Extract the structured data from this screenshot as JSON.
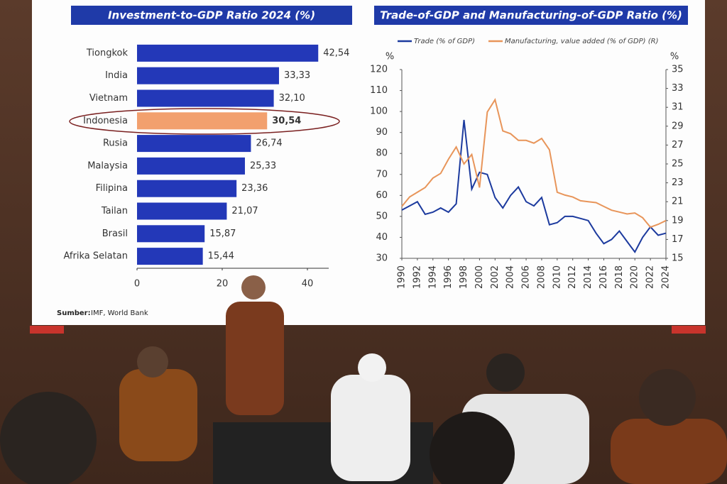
{
  "chart_data": [
    {
      "type": "bar",
      "orientation": "horizontal",
      "title": "Investment-to-GDP Ratio 2024 (%)",
      "categories": [
        "Tiongkok",
        "India",
        "Vietnam",
        "Indonesia",
        "Rusia",
        "Malaysia",
        "Filipina",
        "Tailan",
        "Brasil",
        "Afrika Selatan"
      ],
      "values": [
        42.54,
        33.33,
        32.1,
        30.54,
        26.74,
        25.33,
        23.36,
        21.07,
        15.87,
        15.44
      ],
      "value_labels": [
        "42,54",
        "33,33",
        "32,10",
        "30,54",
        "26,74",
        "25,33",
        "23,36",
        "21,07",
        "15,87",
        "15,44"
      ],
      "colors": [
        "#2338b8",
        "#2338b8",
        "#2338b8",
        "#f2a06e",
        "#2338b8",
        "#2338b8",
        "#2338b8",
        "#2338b8",
        "#2338b8",
        "#2338b8"
      ],
      "xlim": [
        0,
        45
      ],
      "xticks": [
        0,
        20,
        40
      ]
    },
    {
      "type": "line",
      "title": "Trade-of-GDP and Manufacturing-of-GDP Ratio (%)",
      "ylabel": "%",
      "y2label": "%",
      "x": [
        1990,
        1991,
        1992,
        1993,
        1994,
        1995,
        1996,
        1997,
        1998,
        1999,
        2000,
        2001,
        2002,
        2003,
        2004,
        2005,
        2006,
        2007,
        2008,
        2009,
        2010,
        2011,
        2012,
        2013,
        2014,
        2015,
        2016,
        2017,
        2018,
        2019,
        2020,
        2021,
        2022,
        2023,
        2024
      ],
      "xlim": [
        1990,
        2024
      ],
      "xticks": [
        1990,
        1992,
        1994,
        1996,
        1998,
        2000,
        2002,
        2004,
        2006,
        2008,
        2010,
        2012,
        2014,
        2016,
        2018,
        2020,
        2022,
        2024
      ],
      "ylim": [
        30,
        120
      ],
      "yticks": [
        30,
        40,
        50,
        60,
        70,
        80,
        90,
        100,
        110,
        120
      ],
      "y2lim": [
        15,
        35
      ],
      "y2ticks": [
        15,
        17,
        19,
        21,
        23,
        25,
        27,
        29,
        31,
        33,
        35
      ],
      "series": [
        {
          "name": "Trade (% of GDP)",
          "color": "#1c3a9e",
          "values": [
            53,
            55,
            57,
            51,
            52,
            54,
            52,
            56,
            96,
            63,
            71,
            70,
            59,
            54,
            60,
            64,
            57,
            55,
            59,
            46,
            47,
            50,
            50,
            49,
            48,
            42,
            37,
            39,
            43,
            38,
            33,
            40,
            45,
            41,
            42
          ]
        },
        {
          "name": "Manufacturing, value added (% of GDP) (R)",
          "color": "#e8955a",
          "axis": "y2",
          "values": [
            20.5,
            21.5,
            22,
            22.5,
            23.5,
            24,
            25.5,
            26.8,
            25,
            26,
            22.5,
            30.5,
            31.8,
            28.5,
            28.2,
            27.5,
            27.5,
            27.2,
            27.7,
            26.5,
            22,
            21.7,
            21.5,
            21.1,
            21,
            20.9,
            20.5,
            20.1,
            19.9,
            19.7,
            19.8,
            19.3,
            18.3,
            18.6,
            19
          ]
        }
      ]
    }
  ],
  "source_label": "Sumber:",
  "source": "IMF, World Bank"
}
